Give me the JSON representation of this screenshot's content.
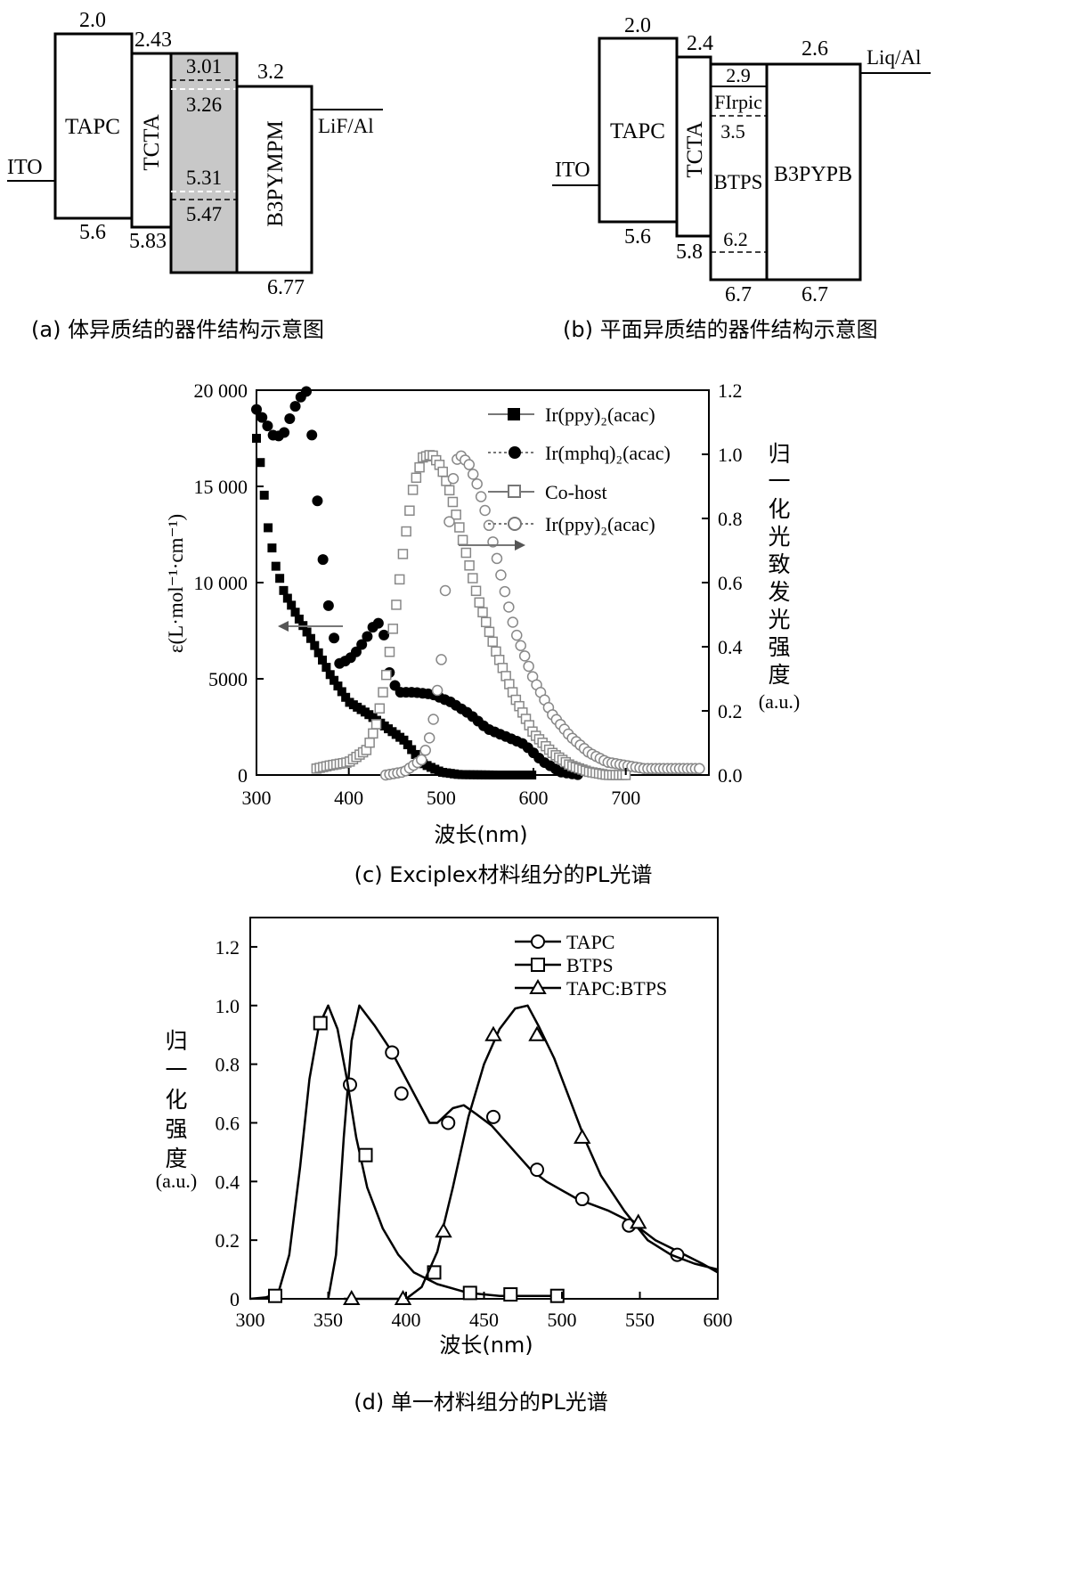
{
  "chart_data": [
    {
      "type": "diagram",
      "panel": "a",
      "caption": "(a) 体异质结的器件结构示意图",
      "left_electrode": "ITO",
      "right_electrode": "LiF/Al",
      "layers": [
        {
          "name": "TAPC",
          "lumo_label": "2.0",
          "homo_label": "5.6"
        },
        {
          "name": "TCTA",
          "lumo_label": "2.43",
          "homo_label": "5.83"
        },
        {
          "name": "",
          "lumo_label": "",
          "homo_label": ""
        },
        {
          "name": "B3PYMPM",
          "lumo_label": "3.2",
          "homo_label": "6.77"
        }
      ],
      "inner_levels": [
        "3.01",
        "3.26",
        "5.31",
        "5.47"
      ]
    },
    {
      "type": "diagram",
      "panel": "b",
      "caption": "(b) 平面异质结的器件结构示意图",
      "left_electrode": "ITO",
      "right_electrode": "Liq/Al",
      "layers": [
        {
          "name": "TAPC",
          "lumo_label": "2.0",
          "homo_label": "5.6"
        },
        {
          "name": "TCTA",
          "lumo_label": "2.4",
          "homo_label": "5.8"
        },
        {
          "name": "BTPS",
          "lumo_label": "",
          "homo_label": "6.7"
        },
        {
          "name": "B3PYPB",
          "lumo_label": "2.6",
          "homo_label": "6.7"
        }
      ],
      "inner_levels": [
        "2.9",
        "FIrpic",
        "3.5",
        "6.2"
      ]
    },
    {
      "type": "scatter",
      "panel": "c",
      "caption": "(c) Exciplex材料组分的PL光谱",
      "xlabel": "波长(nm)",
      "ylabel_left": "ε(L·mol⁻¹·cm⁻¹)",
      "ylabel_right": [
        "归",
        "一",
        "化",
        "光",
        "致",
        "发",
        "光",
        "强",
        "度",
        "(a.u.)"
      ],
      "xlim": [
        300,
        790
      ],
      "ylim_left": [
        0,
        20000
      ],
      "ylim_right": [
        0,
        1.2
      ],
      "x_ticks": [
        "300",
        "400",
        "500",
        "600",
        "700"
      ],
      "y_ticks_left": [
        "0",
        "5000",
        "10 000",
        "15 000",
        "20 000"
      ],
      "y_ticks_right": [
        "0.0",
        "0.2",
        "0.4",
        "0.6",
        "0.8",
        "1.0",
        "1.2"
      ],
      "legend": [
        {
          "label": "Ir(ppy)₂(acac)",
          "marker": "filled-square"
        },
        {
          "label": "Ir(mphq)₂(acac)",
          "marker": "filled-circle"
        },
        {
          "label": "Co-host",
          "marker": "open-square"
        },
        {
          "label": "Ir(ppy)₂(acac)",
          "marker": "open-circle"
        }
      ],
      "series": [
        {
          "name": "Ir(ppy)2(acac) absorption",
          "axis": "left",
          "points": [
            [
              300,
              17500
            ],
            [
              305,
              16000
            ],
            [
              312,
              13000
            ],
            [
              320,
              11000
            ],
            [
              330,
              9500
            ],
            [
              345,
              8200
            ],
            [
              360,
              7000
            ],
            [
              380,
              5200
            ],
            [
              400,
              3800
            ],
            [
              420,
              3200
            ],
            [
              440,
              2500
            ],
            [
              460,
              1800
            ],
            [
              480,
              600
            ],
            [
              500,
              150
            ],
            [
              520,
              20
            ],
            [
              560,
              0
            ],
            [
              600,
              0
            ]
          ]
        },
        {
          "name": "Ir(mphq)2(acac) absorption",
          "axis": "left",
          "points": [
            [
              300,
              19000
            ],
            [
              310,
              18300
            ],
            [
              320,
              17500
            ],
            [
              330,
              17800
            ],
            [
              340,
              19000
            ],
            [
              350,
              19800
            ],
            [
              356,
              20000
            ],
            [
              362,
              16500
            ],
            [
              370,
              12000
            ],
            [
              380,
              8000
            ],
            [
              390,
              5800
            ],
            [
              400,
              6000
            ],
            [
              410,
              6500
            ],
            [
              420,
              7200
            ],
            [
              430,
              8000
            ],
            [
              437,
              7600
            ],
            [
              445,
              5000
            ],
            [
              455,
              4300
            ],
            [
              470,
              4300
            ],
            [
              490,
              4200
            ],
            [
              510,
              3800
            ],
            [
              530,
              3200
            ],
            [
              550,
              2400
            ],
            [
              570,
              2000
            ],
            [
              590,
              1600
            ],
            [
              610,
              700
            ],
            [
              630,
              150
            ],
            [
              650,
              0
            ]
          ]
        },
        {
          "name": "Co-host PL",
          "axis": "right",
          "points": [
            [
              365,
              0.02
            ],
            [
              380,
              0.03
            ],
            [
              400,
              0.04
            ],
            [
              420,
              0.08
            ],
            [
              430,
              0.16
            ],
            [
              440,
              0.3
            ],
            [
              450,
              0.5
            ],
            [
              460,
              0.72
            ],
            [
              470,
              0.9
            ],
            [
              480,
              0.99
            ],
            [
              490,
              1.0
            ],
            [
              500,
              0.96
            ],
            [
              510,
              0.88
            ],
            [
              520,
              0.77
            ],
            [
              530,
              0.66
            ],
            [
              540,
              0.55
            ],
            [
              560,
              0.38
            ],
            [
              580,
              0.24
            ],
            [
              600,
              0.13
            ],
            [
              620,
              0.07
            ],
            [
              640,
              0.03
            ],
            [
              660,
              0.01
            ],
            [
              680,
              0.0
            ],
            [
              700,
              0.0
            ]
          ]
        },
        {
          "name": "Ir(ppy)2(acac) PL",
          "axis": "right",
          "points": [
            [
              440,
              0.0
            ],
            [
              460,
              0.01
            ],
            [
              480,
              0.05
            ],
            [
              490,
              0.14
            ],
            [
              500,
              0.35
            ],
            [
              505,
              0.6
            ],
            [
              510,
              0.85
            ],
            [
              515,
              0.97
            ],
            [
              520,
              1.0
            ],
            [
              530,
              0.97
            ],
            [
              540,
              0.9
            ],
            [
              550,
              0.8
            ],
            [
              560,
              0.68
            ],
            [
              570,
              0.56
            ],
            [
              580,
              0.45
            ],
            [
              600,
              0.3
            ],
            [
              620,
              0.19
            ],
            [
              640,
              0.12
            ],
            [
              660,
              0.07
            ],
            [
              680,
              0.04
            ],
            [
              700,
              0.03
            ],
            [
              720,
              0.02
            ],
            [
              740,
              0.02
            ],
            [
              760,
              0.02
            ],
            [
              780,
              0.02
            ]
          ]
        }
      ]
    },
    {
      "type": "line",
      "panel": "d",
      "caption": "(d) 单一材料组分的PL光谱",
      "xlabel": "波长(nm)",
      "ylabel": [
        "归",
        "一",
        "化",
        "强",
        "度",
        "(a.u.)"
      ],
      "xlim": [
        300,
        600
      ],
      "ylim": [
        0,
        1.3
      ],
      "x_ticks": [
        "300",
        "350",
        "400",
        "450",
        "500",
        "550",
        "600"
      ],
      "y_ticks": [
        "0",
        "0.2",
        "0.4",
        "0.6",
        "0.8",
        "1.0",
        "1.2"
      ],
      "legend": [
        {
          "label": "TAPC",
          "marker": "open-circle"
        },
        {
          "label": "BTPS",
          "marker": "open-square"
        },
        {
          "label": "TAPC:BTPS",
          "marker": "open-triangle"
        }
      ],
      "series": [
        {
          "name": "TAPC",
          "marker": "circle",
          "points": [
            [
              350,
              0.0
            ],
            [
              355,
              0.15
            ],
            [
              360,
              0.55
            ],
            [
              365,
              0.88
            ],
            [
              370,
              1.0
            ],
            [
              380,
              0.93
            ],
            [
              390,
              0.85
            ],
            [
              400,
              0.75
            ],
            [
              410,
              0.65
            ],
            [
              415,
              0.6
            ],
            [
              420,
              0.6
            ],
            [
              430,
              0.65
            ],
            [
              437,
              0.66
            ],
            [
              445,
              0.63
            ],
            [
              455,
              0.59
            ],
            [
              470,
              0.5
            ],
            [
              480,
              0.44
            ],
            [
              490,
              0.4
            ],
            [
              510,
              0.34
            ],
            [
              530,
              0.3
            ],
            [
              545,
              0.26
            ],
            [
              560,
              0.2
            ],
            [
              575,
              0.16
            ],
            [
              590,
              0.12
            ],
            [
              600,
              0.09
            ]
          ],
          "markers": [
            [
              364,
              0.73
            ],
            [
              391,
              0.84
            ],
            [
              397,
              0.7
            ],
            [
              427,
              0.6
            ],
            [
              456,
              0.62
            ],
            [
              484,
              0.44
            ],
            [
              513,
              0.34
            ],
            [
              543,
              0.25
            ],
            [
              574,
              0.15
            ]
          ]
        },
        {
          "name": "BTPS",
          "marker": "square",
          "points": [
            [
              300,
              0.0
            ],
            [
              310,
              0.005
            ],
            [
              318,
              0.02
            ],
            [
              325,
              0.15
            ],
            [
              332,
              0.45
            ],
            [
              338,
              0.75
            ],
            [
              344,
              0.93
            ],
            [
              350,
              1.0
            ],
            [
              356,
              0.92
            ],
            [
              362,
              0.75
            ],
            [
              368,
              0.55
            ],
            [
              375,
              0.38
            ],
            [
              385,
              0.24
            ],
            [
              395,
              0.15
            ],
            [
              405,
              0.09
            ],
            [
              420,
              0.05
            ],
            [
              440,
              0.02
            ],
            [
              460,
              0.01
            ],
            [
              480,
              0.01
            ],
            [
              500,
              0.01
            ]
          ],
          "markers": [
            [
              316,
              0.01
            ],
            [
              345,
              0.94
            ],
            [
              374,
              0.49
            ],
            [
              418,
              0.09
            ],
            [
              441,
              0.02
            ],
            [
              467,
              0.015
            ],
            [
              497,
              0.01
            ]
          ]
        },
        {
          "name": "TAPC:BTPS",
          "marker": "triangle",
          "points": [
            [
              360,
              0.0
            ],
            [
              380,
              0.0
            ],
            [
              400,
              0.0
            ],
            [
              410,
              0.04
            ],
            [
              420,
              0.16
            ],
            [
              430,
              0.38
            ],
            [
              440,
              0.62
            ],
            [
              450,
              0.8
            ],
            [
              460,
              0.92
            ],
            [
              470,
              0.99
            ],
            [
              478,
              1.0
            ],
            [
              485,
              0.93
            ],
            [
              495,
              0.82
            ],
            [
              505,
              0.68
            ],
            [
              515,
              0.54
            ],
            [
              525,
              0.42
            ],
            [
              540,
              0.3
            ],
            [
              555,
              0.2
            ],
            [
              570,
              0.15
            ],
            [
              585,
              0.12
            ],
            [
              600,
              0.1
            ]
          ],
          "markers": [
            [
              365,
              0.0
            ],
            [
              398,
              0.0
            ],
            [
              424,
              0.23
            ],
            [
              456,
              0.9
            ],
            [
              484,
              0.9
            ],
            [
              513,
              0.55
            ],
            [
              549,
              0.26
            ]
          ]
        }
      ]
    }
  ]
}
